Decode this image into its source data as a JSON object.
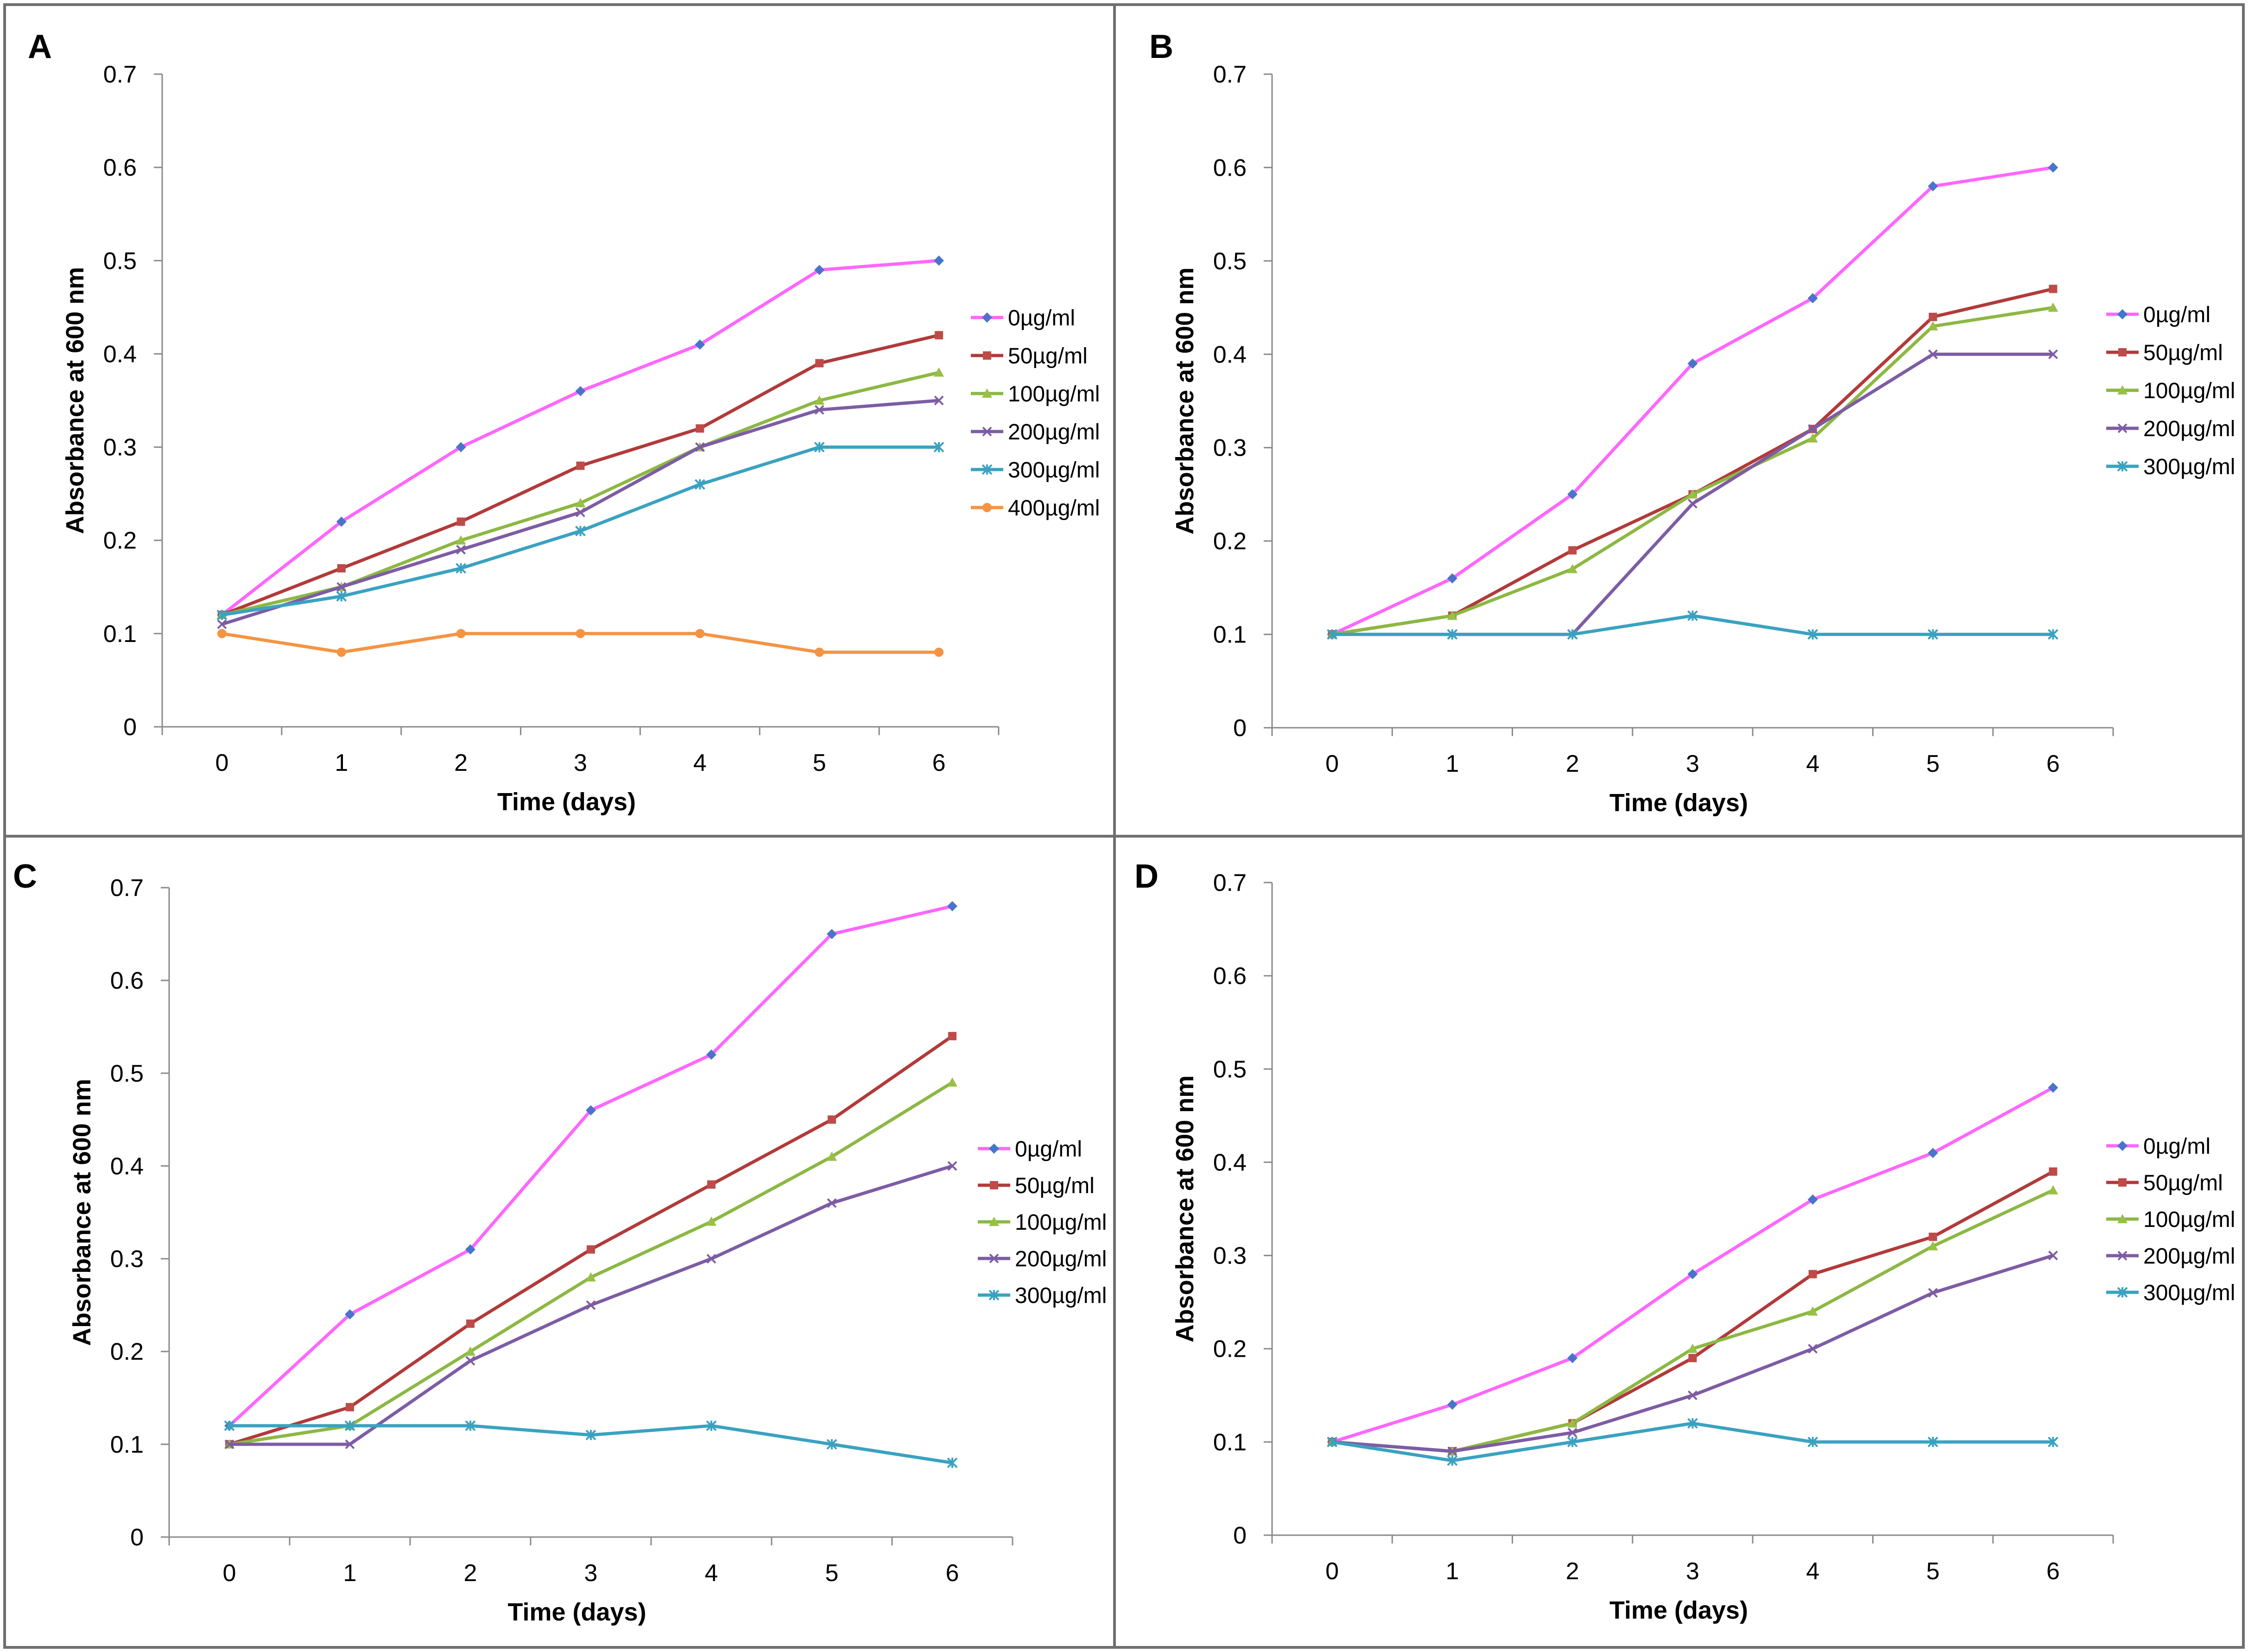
{
  "chart_data": [
    {
      "panel": "A",
      "type": "line",
      "xlabel": "Time (days)",
      "ylabel": "Absorbance at 600 nm",
      "ylim": [
        0,
        0.7
      ],
      "x": [
        0,
        1,
        2,
        3,
        4,
        5,
        6
      ],
      "x_tick_labels": [
        "0",
        "1",
        "2",
        "3",
        "4",
        "5",
        "6"
      ],
      "y_tick_labels": [
        "0",
        "0.1",
        "0.2",
        "0.3",
        "0.4",
        "0.5",
        "0.6",
        "0.7"
      ],
      "legend_position": "right",
      "series": [
        {
          "name": "0µg/ml",
          "values": [
            0.12,
            0.22,
            0.3,
            0.36,
            0.41,
            0.49,
            0.5
          ]
        },
        {
          "name": "50µg/ml",
          "values": [
            0.12,
            0.17,
            0.22,
            0.28,
            0.32,
            0.39,
            0.42
          ]
        },
        {
          "name": "100µg/ml",
          "values": [
            0.12,
            0.15,
            0.2,
            0.24,
            0.3,
            0.35,
            0.38
          ]
        },
        {
          "name": "200µg/ml",
          "values": [
            0.11,
            0.15,
            0.19,
            0.23,
            0.3,
            0.34,
            0.35
          ]
        },
        {
          "name": "300µg/ml",
          "values": [
            0.12,
            0.14,
            0.17,
            0.21,
            0.26,
            0.3,
            0.3
          ]
        },
        {
          "name": "400µg/ml",
          "values": [
            0.1,
            0.08,
            0.1,
            0.1,
            0.1,
            0.08,
            0.08
          ]
        }
      ]
    },
    {
      "panel": "B",
      "type": "line",
      "xlabel": "Time (days)",
      "ylabel": "Absorbance at 600 nm",
      "ylim": [
        0,
        0.7
      ],
      "x": [
        0,
        1,
        2,
        3,
        4,
        5,
        6
      ],
      "x_tick_labels": [
        "0",
        "1",
        "2",
        "3",
        "4",
        "5",
        "6"
      ],
      "y_tick_labels": [
        "0",
        "0.1",
        "0.2",
        "0.3",
        "0.4",
        "0.5",
        "0.6",
        "0.7"
      ],
      "legend_position": "right",
      "series": [
        {
          "name": "0µg/ml",
          "values": [
            0.1,
            0.16,
            0.25,
            0.39,
            0.46,
            0.58,
            0.6
          ]
        },
        {
          "name": "50µg/ml",
          "values": [
            0.1,
            0.12,
            0.19,
            0.25,
            0.32,
            0.44,
            0.47
          ]
        },
        {
          "name": "100µg/ml",
          "values": [
            0.1,
            0.12,
            0.17,
            0.25,
            0.31,
            0.43,
            0.45
          ]
        },
        {
          "name": "200µg/ml",
          "values": [
            0.1,
            0.1,
            0.1,
            0.24,
            0.32,
            0.4,
            0.4
          ]
        },
        {
          "name": "300µg/ml",
          "values": [
            0.1,
            0.1,
            0.1,
            0.12,
            0.1,
            0.1,
            0.1
          ]
        }
      ]
    },
    {
      "panel": "C",
      "type": "line",
      "xlabel": "Time (days)",
      "ylabel": "Absorbance at 600 nm",
      "ylim": [
        0,
        0.7
      ],
      "x": [
        0,
        1,
        2,
        3,
        4,
        5,
        6
      ],
      "x_tick_labels": [
        "0",
        "1",
        "2",
        "3",
        "4",
        "5",
        "6"
      ],
      "y_tick_labels": [
        "0",
        "0.1",
        "0.2",
        "0.3",
        "0.4",
        "0.5",
        "0.6",
        "0.7"
      ],
      "legend_position": "right",
      "series": [
        {
          "name": "0µg/ml",
          "values": [
            0.12,
            0.24,
            0.31,
            0.46,
            0.52,
            0.65,
            0.68
          ]
        },
        {
          "name": "50µg/ml",
          "values": [
            0.1,
            0.14,
            0.23,
            0.31,
            0.38,
            0.45,
            0.54
          ]
        },
        {
          "name": "100µg/ml",
          "values": [
            0.1,
            0.12,
            0.2,
            0.28,
            0.34,
            0.41,
            0.49
          ]
        },
        {
          "name": "200µg/ml",
          "values": [
            0.1,
            0.1,
            0.19,
            0.25,
            0.3,
            0.36,
            0.4
          ]
        },
        {
          "name": "300µg/ml",
          "values": [
            0.12,
            0.12,
            0.12,
            0.11,
            0.12,
            0.1,
            0.08
          ]
        }
      ]
    },
    {
      "panel": "D",
      "type": "line",
      "xlabel": "Time (days)",
      "ylabel": "Absorbance at 600 nm",
      "ylim": [
        0,
        0.7
      ],
      "x": [
        0,
        1,
        2,
        3,
        4,
        5,
        6
      ],
      "x_tick_labels": [
        "0",
        "1",
        "2",
        "3",
        "4",
        "5",
        "6"
      ],
      "y_tick_labels": [
        "0",
        "0.1",
        "0.2",
        "0.3",
        "0.4",
        "0.5",
        "0.6",
        "0.7"
      ],
      "legend_position": "right",
      "series": [
        {
          "name": "0µg/ml",
          "values": [
            0.1,
            0.14,
            0.19,
            0.28,
            0.36,
            0.41,
            0.48
          ]
        },
        {
          "name": "50µg/ml",
          "values": [
            0.1,
            0.09,
            0.12,
            0.19,
            0.28,
            0.32,
            0.39
          ]
        },
        {
          "name": "100µg/ml",
          "values": [
            0.1,
            0.09,
            0.12,
            0.2,
            0.24,
            0.31,
            0.37
          ]
        },
        {
          "name": "200µg/ml",
          "values": [
            0.1,
            0.09,
            0.11,
            0.15,
            0.2,
            0.26,
            0.3
          ]
        },
        {
          "name": "300µg/ml",
          "values": [
            0.1,
            0.08,
            0.1,
            0.12,
            0.1,
            0.1,
            0.1
          ]
        }
      ]
    }
  ],
  "series_styles": [
    {
      "line_color": "#ff66ff",
      "marker_color": "#4a74c9",
      "marker": "diamond"
    },
    {
      "line_color": "#b23a3a",
      "marker_color": "#be4b48",
      "marker": "square"
    },
    {
      "line_color": "#8cb843",
      "marker_color": "#98c046",
      "marker": "triangle"
    },
    {
      "line_color": "#7d5ca4",
      "marker_color": "#7d5ca4",
      "marker": "x"
    },
    {
      "line_color": "#3aa2c0",
      "marker_color": "#3aa2c0",
      "marker": "star"
    },
    {
      "line_color": "#f49443",
      "marker_color": "#f49443",
      "marker": "circle"
    }
  ]
}
